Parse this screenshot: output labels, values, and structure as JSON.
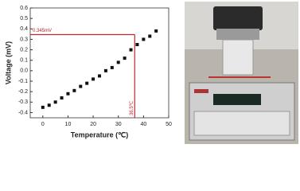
{
  "chart_data": {
    "type": "scatter",
    "x_label": "Temperature (℃)",
    "y_label": "Voltage (mV)",
    "x": [
      0,
      2.5,
      5,
      7.5,
      10,
      12.5,
      15,
      17.5,
      20,
      22.5,
      25,
      27.5,
      30,
      32.5,
      35,
      37.5,
      40,
      42.5,
      45
    ],
    "values": [
      -0.35,
      -0.33,
      -0.3,
      -0.26,
      -0.22,
      -0.19,
      -0.15,
      -0.12,
      -0.08,
      -0.05,
      0.0,
      0.03,
      0.08,
      0.12,
      0.2,
      0.25,
      0.3,
      0.33,
      0.38
    ],
    "color": "#111111",
    "xlim": [
      -5,
      50
    ],
    "xticks": [
      0,
      10,
      20,
      30,
      40,
      50
    ],
    "ylim": [
      -0.45,
      0.6
    ],
    "yticks": [
      -0.4,
      -0.3,
      -0.2,
      -0.1,
      {
        "value": 0,
        "label": "0.0"
      },
      0.1,
      0.2,
      0.3,
      0.4,
      0.5,
      0.6
    ],
    "annotations": [
      {
        "text": "0.345mV",
        "value": 0.345
      },
      {
        "text": "36.5℃",
        "value": 36.5
      }
    ],
    "annotation_color": "#c0272d"
  }
}
